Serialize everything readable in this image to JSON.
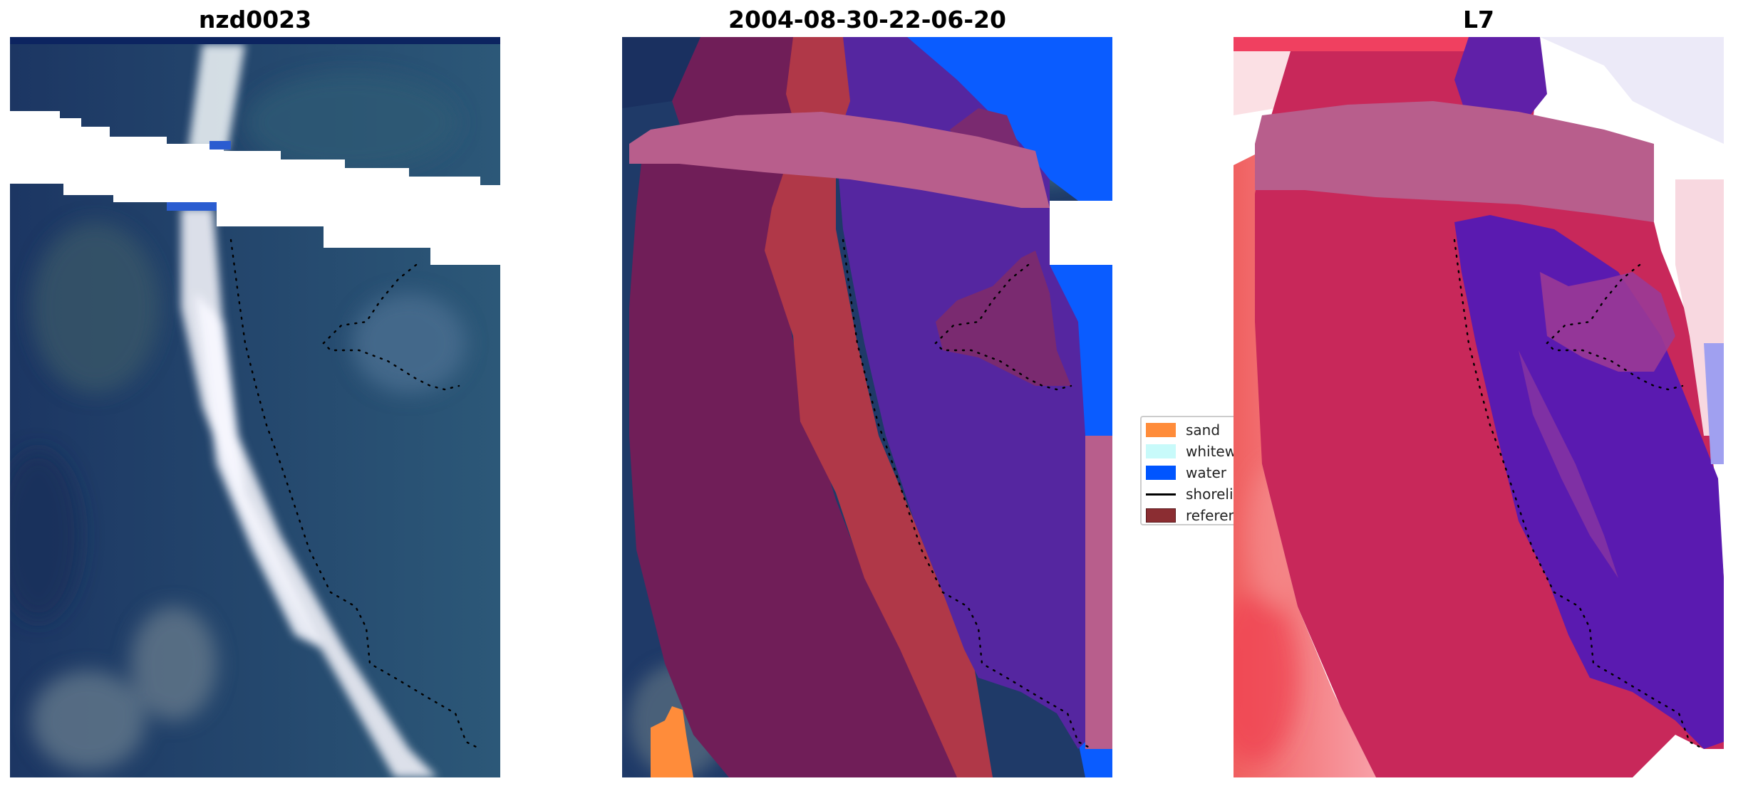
{
  "figure": {
    "panels": [
      {
        "id": "rgb",
        "title": "nzd0023"
      },
      {
        "id": "classification",
        "title": "2004-08-30-22-06-20"
      },
      {
        "id": "index",
        "title": "L7"
      }
    ]
  },
  "legend": {
    "items": [
      {
        "label": "sand",
        "color": "#ff8c3a",
        "kind": "patch"
      },
      {
        "label": "whitewater",
        "color": "#c8fafa",
        "kind": "patch"
      },
      {
        "label": "water",
        "color": "#0055ff",
        "kind": "patch"
      },
      {
        "label": "shoreline",
        "color": "#000000",
        "kind": "line"
      },
      {
        "label": "reference",
        "color": "#8b2d32",
        "kind": "patch"
      }
    ]
  },
  "colors": {
    "ocean_dark": "#1c3663",
    "ocean_mid": "#2d5a78",
    "surf_white": "#f0f0f5",
    "mask_pink": "#b85e8c",
    "water_purple": "#5526a0",
    "reference_red": "#b03848",
    "land_maroon": "#701e58",
    "water_blue": "#0a5cff",
    "index_red": "#c8285a"
  }
}
